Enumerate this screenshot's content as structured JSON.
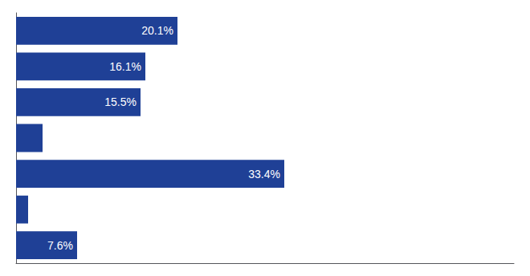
{
  "chart_data": {
    "type": "bar",
    "orientation": "horizontal",
    "categories": [
      null,
      null,
      null,
      null,
      null,
      null,
      null
    ],
    "values": [
      20.1,
      16.1,
      15.5,
      3.3,
      33.4,
      1.5,
      7.6
    ],
    "value_labels": [
      "20.1%",
      "16.1%",
      "15.5%",
      null,
      "33.4%",
      null,
      "7.6%"
    ],
    "data_labels": true,
    "color": "#1f4096",
    "xlim": [
      0,
      62
    ],
    "tick_labels": false,
    "grid": false
  }
}
